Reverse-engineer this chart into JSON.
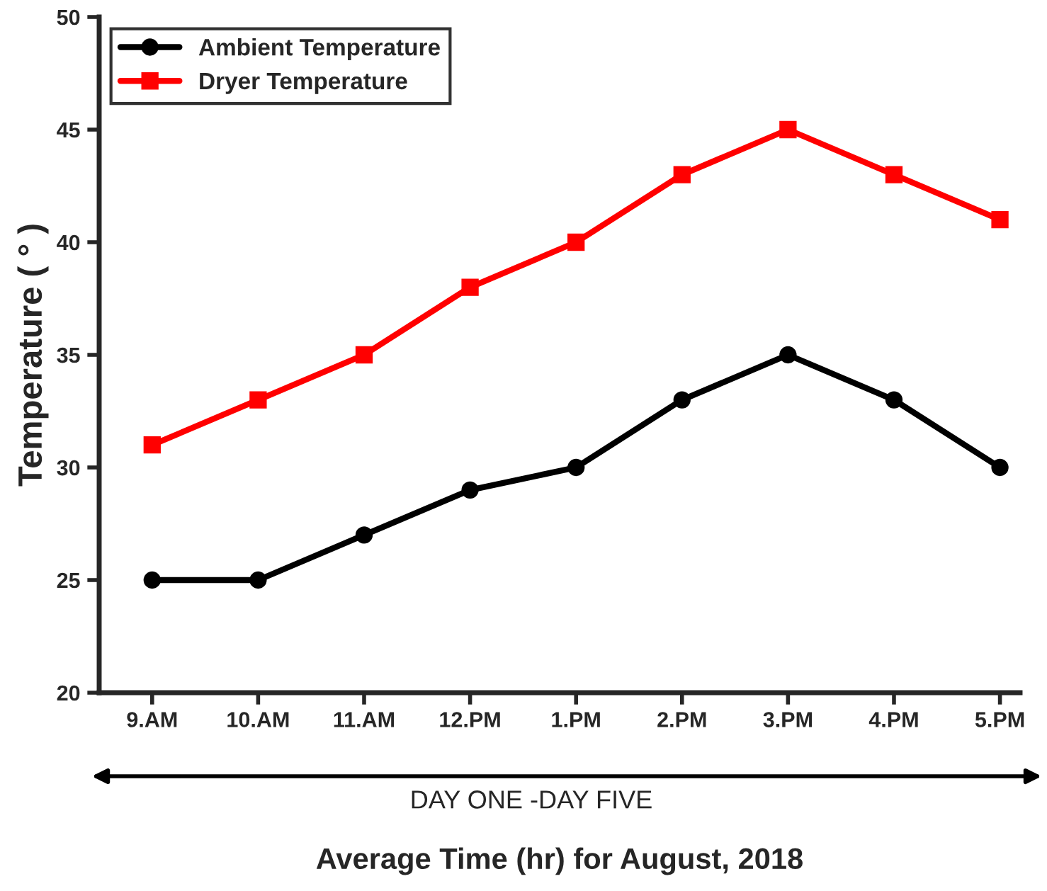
{
  "chart_data": {
    "type": "line",
    "xlabel": "Average Time (hr) for August, 2018",
    "ylabel": "Temperature ( ° )",
    "categories": [
      "9.AM",
      "10.AM",
      "11.AM",
      "12.PM",
      "1.PM",
      "2.PM",
      "3.PM",
      "4.PM",
      "5.PM"
    ],
    "series": [
      {
        "name": "Ambient Temperature",
        "color": "#000000",
        "marker": "circle",
        "values": [
          25,
          25,
          27,
          29,
          30,
          33,
          35,
          33,
          30
        ]
      },
      {
        "name": "Dryer Temperature",
        "color": "#ff0000",
        "marker": "square",
        "values": [
          31,
          33,
          35,
          38,
          40,
          43,
          45,
          43,
          41
        ]
      }
    ],
    "ylim": [
      20,
      50
    ],
    "yticks": [
      20,
      25,
      30,
      35,
      40,
      45,
      50
    ],
    "grid": false,
    "legend": "top left",
    "line_style": "solid",
    "annotations": [
      "DAY ONE -DAY FIVE"
    ]
  }
}
